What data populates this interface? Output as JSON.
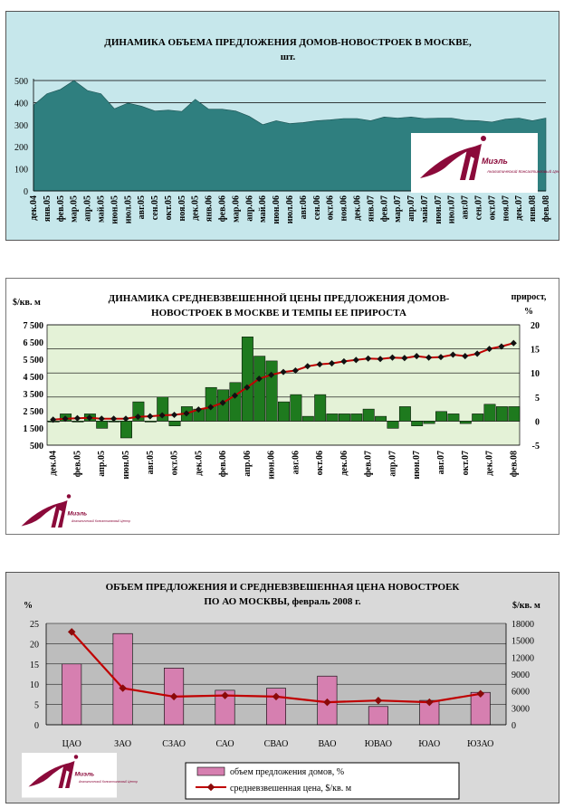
{
  "colors": {
    "area_fill": "#2f7f7f",
    "panel1_bg": "#c6e7eb",
    "panel2_bg": "#e4f2d7",
    "bar_green": "#1e7a1e",
    "line_red": "#c00000",
    "bar_pink": "#d67fb0",
    "panel3_plot_bg": "#bdbdbd",
    "logo": "#8b0a3a"
  },
  "logo": {
    "name": "Миэль",
    "sub": "Аналитический Консалтинговый Центр"
  },
  "chart_data": [
    {
      "type": "area",
      "title_line1": "ДИНАМИКА ОБЪЕМА ПРЕДЛОЖЕНИЯ ДОМОВ-НОВОСТРОЕК В МОСКВЕ,",
      "title_line2": "шт.",
      "ylim": [
        0,
        500
      ],
      "yticks": [
        0,
        100,
        200,
        300,
        400,
        500
      ],
      "x_labels": [
        "дек.04",
        "янв.05",
        "фев.05",
        "мар.05",
        "апр.05",
        "май.05",
        "июн.05",
        "июл.05",
        "авг.05",
        "сен.05",
        "окт.05",
        "ноя.05",
        "дек.05",
        "янв.06",
        "фев.06",
        "мар.06",
        "апр.06",
        "май.06",
        "июн.06",
        "июл.06",
        "авг.06",
        "сен.06",
        "окт.06",
        "ноя.06",
        "дек.06",
        "янв.07",
        "фев.07",
        "мар.07",
        "апр.07",
        "май.07",
        "июн.07",
        "июл.07",
        "авг.07",
        "сен.07",
        "окт.07",
        "ноя.07",
        "дек.07",
        "янв.08",
        "фев.08"
      ],
      "values": [
        388,
        440,
        460,
        500,
        455,
        440,
        372,
        398,
        384,
        362,
        366,
        360,
        415,
        370,
        370,
        362,
        338,
        300,
        318,
        305,
        310,
        318,
        322,
        328,
        328,
        318,
        335,
        330,
        335,
        328,
        330,
        330,
        320,
        318,
        312,
        325,
        330,
        318,
        330
      ],
      "grid": true
    },
    {
      "type": "bar+line",
      "title_line1": "ДИНАМИКА СРЕДНЕВЗВЕШЕННОЙ ЦЕНЫ ПРЕДЛОЖЕНИЯ ДОМОВ-",
      "title_line2": "НОВОСТРОЕК В МОСКВЕ И ТЕМПЫ ЕЕ ПРИРОСТА",
      "y_left_label": "$/кв. м",
      "y_right_label": "прирост,",
      "y_right_unit": "%",
      "y_left_ticks": [
        "7 500",
        "6 500",
        "5 500",
        "4 500",
        "3 500",
        "2 500",
        "1 500",
        "500"
      ],
      "y_right_ticks": [
        "20",
        "15",
        "10",
        "5",
        "0",
        "-5"
      ],
      "ylim_right": [
        -5,
        20
      ],
      "x_labels": [
        "дек.04",
        "фев.05",
        "апр.05",
        "июн.05",
        "авг.05",
        "окт.05",
        "дек.05",
        "фев.06",
        "апр.06",
        "июн.06",
        "авг.06",
        "окт.06",
        "дек.06",
        "фев.07",
        "апр.07",
        "июн.07",
        "авг.07",
        "окт.07",
        "дек.07",
        "фев.08"
      ],
      "bars_growth": [
        0,
        1.5,
        0,
        1.5,
        -1.5,
        0,
        -3.5,
        4,
        0,
        5,
        -1,
        3,
        2.5,
        7,
        6.5,
        8,
        17.5,
        13.5,
        12.5,
        4,
        5.5,
        1,
        5.5,
        1.5,
        1.5,
        1.5,
        2.5,
        1,
        -1.5,
        3,
        -1,
        -0.5,
        2,
        1.5,
        -0.5,
        1.5,
        3.5,
        3,
        3
      ],
      "line_price": [
        0.3,
        0.5,
        0.6,
        0.7,
        0.5,
        0.5,
        0.5,
        0.9,
        1,
        1.2,
        1.3,
        1.6,
        2.4,
        2.9,
        3.8,
        5.3,
        7,
        8.8,
        9.6,
        10.2,
        10.5,
        11.4,
        11.8,
        12,
        12.4,
        12.7,
        13,
        12.9,
        13.2,
        13.1,
        13.5,
        13.2,
        13.3,
        13.8,
        13.5,
        14,
        15,
        15.5,
        16.2
      ]
    },
    {
      "type": "bar+line",
      "title_line1": "ОБЪЕМ ПРЕДЛОЖЕНИЯ И СРЕДНЕВЗВЕШЕННАЯ ЦЕНА НОВОСТРОЕК",
      "title_line2": "ПО АО МОСКВЫ, февраль 2008 г.",
      "y_left_label": "%",
      "y_right_label": "$/кв. м",
      "y_left_ticks": [
        "25",
        "20",
        "15",
        "10",
        "5",
        "0"
      ],
      "y_right_ticks": [
        "18000",
        "15000",
        "12000",
        "9000",
        "6000",
        "3000",
        "0"
      ],
      "ylim_left": [
        0,
        25
      ],
      "ylim_right": [
        0,
        18000
      ],
      "categories": [
        "ЦАО",
        "ЗАО",
        "СЗАО",
        "САО",
        "СВАО",
        "ВАО",
        "ЮВАО",
        "ЮАО",
        "ЮЗАО"
      ],
      "series": [
        {
          "name": "объем предложения домов, %",
          "values": [
            15,
            22.5,
            14,
            8.5,
            9,
            12,
            4.5,
            6,
            8
          ]
        },
        {
          "name": "средневзвешенная цена, $/кв. м",
          "values": [
            16500,
            6500,
            5000,
            5200,
            5000,
            4000,
            4300,
            4000,
            5500
          ]
        }
      ]
    }
  ]
}
